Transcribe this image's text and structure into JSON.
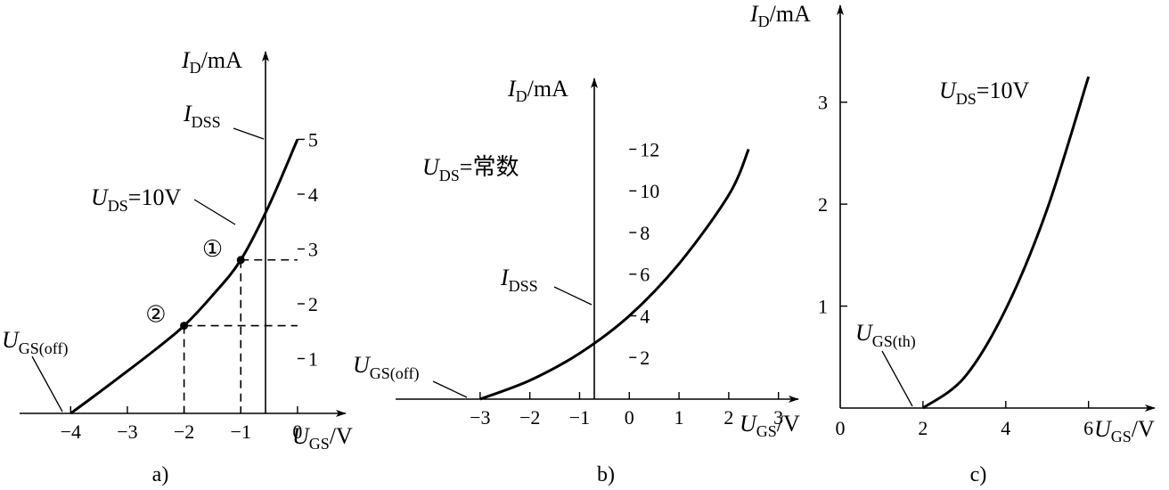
{
  "chart_data": [
    {
      "id": "a",
      "type": "line",
      "caption": "a)",
      "xlabel_main": "U",
      "xlabel_sub": "GS",
      "xlabel_unit": "/V",
      "ylabel_main": "I",
      "ylabel_sub": "D",
      "ylabel_unit": "/mA",
      "xlim": [
        -4.9,
        0.85
      ],
      "ylim": [
        0,
        6.6
      ],
      "x_ticks": [
        -4,
        -3,
        -2,
        -1,
        0
      ],
      "x_tick_labels": [
        "−4",
        "−3",
        "−2",
        "−1",
        "0"
      ],
      "y_ticks": [
        1,
        2,
        3,
        4,
        5
      ],
      "y_tick_labels": [
        "1",
        "2",
        "3",
        "4",
        "5"
      ],
      "series": [
        {
          "x": [
            -4,
            -3.5,
            -3,
            -2.5,
            -2,
            -1.5,
            -1,
            -0.5,
            0
          ],
          "y": [
            0,
            0.38,
            0.77,
            1.17,
            1.6,
            2.15,
            2.8,
            3.8,
            5.0
          ]
        }
      ],
      "points": [
        {
          "label": "①",
          "x": -1,
          "y": 2.8
        },
        {
          "label": "②",
          "x": -2,
          "y": 1.6
        }
      ],
      "annotations": {
        "idss_main": "I",
        "idss_sub": "DSS",
        "uds_main": "U",
        "uds_sub": "DS",
        "uds_value": "=10V",
        "off_main": "U",
        "off_sub": "GS(off)"
      }
    },
    {
      "id": "b",
      "type": "line",
      "caption": "b)",
      "xlabel_main": "U",
      "xlabel_sub": "GS",
      "xlabel_unit": "/V",
      "ylabel_main": "I",
      "ylabel_sub": "D",
      "ylabel_unit": "/mA",
      "xlim": [
        -4.7,
        3.4
      ],
      "ylim": [
        0,
        15.4
      ],
      "x_ticks": [
        -3,
        -2,
        -1,
        0,
        1,
        2,
        3
      ],
      "x_tick_labels": [
        "−3",
        "−2",
        "−1",
        "0",
        "1",
        "2",
        "3"
      ],
      "y_ticks": [
        2,
        4,
        6,
        8,
        10,
        12
      ],
      "y_tick_labels": [
        "2",
        "4",
        "6",
        "8",
        "10",
        "12"
      ],
      "series": [
        {
          "x": [
            -3,
            -2,
            -1,
            0,
            1,
            2,
            2.4
          ],
          "y": [
            0,
            0.9,
            2.2,
            4.0,
            6.5,
            9.8,
            12.0
          ]
        }
      ],
      "annotations": {
        "idss_main": "I",
        "idss_sub": "DSS",
        "uds_main": "U",
        "uds_sub": "DS",
        "uds_value": "=常数",
        "off_main": "U",
        "off_sub": "GS(off)"
      }
    },
    {
      "id": "c",
      "type": "line",
      "caption": "c)",
      "xlabel_main": "U",
      "xlabel_sub": "GS",
      "xlabel_unit": "/V",
      "ylabel_main": "I",
      "ylabel_sub": "D",
      "ylabel_unit": "/mA",
      "xlim": [
        0,
        7.6
      ],
      "ylim": [
        0,
        3.95
      ],
      "x_ticks": [
        0,
        2,
        4,
        6
      ],
      "x_tick_labels": [
        "0",
        "2",
        "4",
        "6"
      ],
      "y_ticks": [
        1,
        2,
        3
      ],
      "y_tick_labels": [
        "1",
        "2",
        "3"
      ],
      "series": [
        {
          "x": [
            2,
            3,
            4,
            5,
            6
          ],
          "y": [
            0,
            0.3,
            0.97,
            1.95,
            3.25
          ]
        }
      ],
      "annotations": {
        "uds_main": "U",
        "uds_sub": "DS",
        "uds_value": "=10V",
        "th_main": "U",
        "th_sub": "GS(th)"
      }
    }
  ]
}
